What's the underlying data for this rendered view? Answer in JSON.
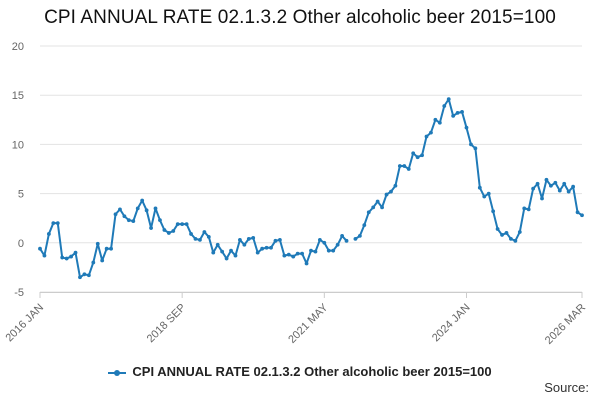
{
  "colors": {
    "series": "#1f7ab8",
    "grid": "#e3e3e3",
    "axis_text": "#666666"
  },
  "chart_data": {
    "type": "line",
    "title": "CPI ANNUAL RATE 02.1.3.2 Other alcoholic beer 2015=100",
    "xlabel": "",
    "ylabel": "",
    "ylim": [
      -5,
      20
    ],
    "yticks": [
      -5,
      0,
      5,
      10,
      15,
      20
    ],
    "xticks": [
      {
        "label": "2016 JAN",
        "index": 0
      },
      {
        "label": "2018 SEP",
        "index": 32
      },
      {
        "label": "2021 MAY",
        "index": 64
      },
      {
        "label": "2024 JAN",
        "index": 96
      },
      {
        "label": "2026 MAR",
        "index": 122
      }
    ],
    "grid": true,
    "legend": "bottom",
    "series": [
      {
        "name": "CPI ANNUAL RATE 02.1.3.2 Other alcoholic beer 2015=100",
        "values": [
          -0.6,
          -1.3,
          0.9,
          2.0,
          2.0,
          -1.5,
          -1.6,
          -1.4,
          -1.0,
          -3.5,
          -3.2,
          -3.3,
          -2.0,
          -0.1,
          -1.8,
          -0.6,
          -0.6,
          2.9,
          3.4,
          2.7,
          2.3,
          2.2,
          3.5,
          4.3,
          3.3,
          1.5,
          3.5,
          2.3,
          1.3,
          1.0,
          1.2,
          1.9,
          1.9,
          1.9,
          0.9,
          0.4,
          0.3,
          1.1,
          0.6,
          -1.0,
          -0.2,
          -0.9,
          -1.6,
          -0.8,
          -1.3,
          0.3,
          -0.2,
          0.4,
          0.5,
          -1.0,
          -0.6,
          -0.5,
          -0.5,
          0.2,
          0.3,
          -1.3,
          -1.2,
          -1.4,
          -1.1,
          -1.1,
          -2.1,
          -0.8,
          -0.9,
          0.3,
          0.0,
          -0.8,
          -0.8,
          -0.2,
          0.7,
          0.2,
          null,
          0.4,
          0.7,
          1.8,
          3.1,
          3.6,
          4.2,
          3.6,
          4.9,
          5.2,
          5.8,
          7.8,
          7.8,
          7.5,
          9.1,
          8.7,
          8.9,
          10.8,
          11.2,
          12.5,
          12.2,
          13.9,
          14.6,
          12.9,
          13.2,
          13.3,
          11.7,
          10.0,
          9.6,
          5.6,
          4.7,
          5.0,
          3.2,
          1.4,
          0.8,
          1.0,
          0.4,
          0.2,
          1.1,
          3.5,
          3.4,
          5.5,
          6.0,
          4.5,
          6.4,
          5.8,
          6.1,
          5.3,
          6.0,
          5.2,
          5.7,
          3.1,
          2.8
        ]
      }
    ]
  },
  "legend": {
    "label": "CPI ANNUAL RATE 02.1.3.2 Other alcoholic beer 2015=100"
  },
  "source": {
    "label": "Source:"
  }
}
